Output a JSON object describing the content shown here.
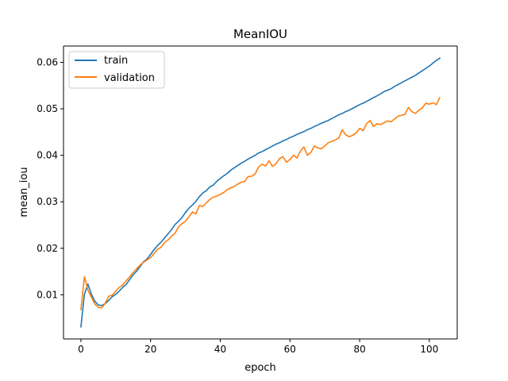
{
  "chart_data": {
    "type": "line",
    "title": "MeanIOU",
    "xlabel": "epoch",
    "ylabel": "mean_iou",
    "xlim": [
      -5,
      108
    ],
    "ylim": [
      0.0005,
      0.0635
    ],
    "xticks": [
      0,
      20,
      40,
      60,
      80,
      100
    ],
    "xtick_labels": [
      "0",
      "20",
      "40",
      "60",
      "80",
      "100"
    ],
    "yticks": [
      0.01,
      0.02,
      0.03,
      0.04,
      0.05,
      0.06
    ],
    "ytick_labels": [
      "0.01",
      "0.02",
      "0.03",
      "0.04",
      "0.05",
      "0.06"
    ],
    "grid": false,
    "legend_position": "top-left",
    "series": [
      {
        "name": "train",
        "color": "#1f77b4",
        "x": [
          0,
          1,
          2,
          3,
          4,
          5,
          6,
          7,
          8,
          9,
          10,
          11,
          12,
          13,
          14,
          15,
          16,
          17,
          18,
          19,
          20,
          21,
          22,
          23,
          24,
          25,
          26,
          27,
          28,
          29,
          30,
          31,
          32,
          33,
          34,
          35,
          36,
          37,
          38,
          39,
          40,
          41,
          42,
          43,
          44,
          45,
          46,
          47,
          48,
          49,
          50,
          51,
          52,
          53,
          54,
          55,
          56,
          57,
          58,
          59,
          60,
          61,
          62,
          63,
          64,
          65,
          66,
          67,
          68,
          69,
          70,
          71,
          72,
          73,
          74,
          75,
          76,
          77,
          78,
          79,
          80,
          81,
          82,
          83,
          84,
          85,
          86,
          87,
          88,
          89,
          90,
          91,
          92,
          93,
          94,
          95,
          96,
          97,
          98,
          99,
          100,
          101,
          102,
          103
        ],
        "values": [
          0.0031,
          0.0101,
          0.0123,
          0.0101,
          0.0086,
          0.0078,
          0.0077,
          0.0081,
          0.0088,
          0.0096,
          0.0101,
          0.0108,
          0.0116,
          0.0122,
          0.0133,
          0.0143,
          0.0151,
          0.0161,
          0.0171,
          0.0177,
          0.0187,
          0.0197,
          0.0206,
          0.0213,
          0.0222,
          0.0231,
          0.024,
          0.0251,
          0.0258,
          0.0266,
          0.0277,
          0.0286,
          0.0293,
          0.0301,
          0.0311,
          0.0319,
          0.0324,
          0.0332,
          0.0336,
          0.0344,
          0.035,
          0.0356,
          0.0361,
          0.0368,
          0.0373,
          0.0378,
          0.0383,
          0.0387,
          0.0392,
          0.0396,
          0.04,
          0.0405,
          0.0408,
          0.0412,
          0.0416,
          0.042,
          0.0424,
          0.0427,
          0.0431,
          0.0434,
          0.0438,
          0.0441,
          0.0445,
          0.0448,
          0.0451,
          0.0455,
          0.0458,
          0.0462,
          0.0465,
          0.0469,
          0.0472,
          0.0475,
          0.0479,
          0.0483,
          0.0487,
          0.049,
          0.0494,
          0.0497,
          0.0501,
          0.0505,
          0.0509,
          0.0512,
          0.0516,
          0.052,
          0.0524,
          0.0528,
          0.0532,
          0.0537,
          0.054,
          0.0543,
          0.0548,
          0.0552,
          0.0556,
          0.056,
          0.0564,
          0.0568,
          0.0572,
          0.0577,
          0.0582,
          0.0587,
          0.0592,
          0.0598,
          0.0604,
          0.0609
        ]
      },
      {
        "name": "validation",
        "color": "#ff7f0e",
        "x": [
          0,
          1,
          2,
          3,
          4,
          5,
          6,
          7,
          8,
          9,
          10,
          11,
          12,
          13,
          14,
          15,
          16,
          17,
          18,
          19,
          20,
          21,
          22,
          23,
          24,
          25,
          26,
          27,
          28,
          29,
          30,
          31,
          32,
          33,
          34,
          35,
          36,
          37,
          38,
          39,
          40,
          41,
          42,
          43,
          44,
          45,
          46,
          47,
          48,
          49,
          50,
          51,
          52,
          53,
          54,
          55,
          56,
          57,
          58,
          59,
          60,
          61,
          62,
          63,
          64,
          65,
          66,
          67,
          68,
          69,
          70,
          71,
          72,
          73,
          74,
          75,
          76,
          77,
          78,
          79,
          80,
          81,
          82,
          83,
          84,
          85,
          86,
          87,
          88,
          89,
          90,
          91,
          92,
          93,
          94,
          95,
          96,
          97,
          98,
          99,
          100,
          101,
          102,
          103
        ],
        "values": [
          0.0068,
          0.0139,
          0.011,
          0.0095,
          0.008,
          0.0073,
          0.0072,
          0.0082,
          0.0097,
          0.0099,
          0.0108,
          0.0116,
          0.0121,
          0.013,
          0.0139,
          0.0148,
          0.0156,
          0.0164,
          0.017,
          0.0175,
          0.018,
          0.0189,
          0.0198,
          0.0202,
          0.0212,
          0.0218,
          0.0226,
          0.0232,
          0.0246,
          0.0253,
          0.0258,
          0.0268,
          0.0278,
          0.0274,
          0.0292,
          0.029,
          0.0298,
          0.0305,
          0.031,
          0.0312,
          0.0316,
          0.032,
          0.0326,
          0.033,
          0.0333,
          0.0338,
          0.0342,
          0.0344,
          0.0354,
          0.0355,
          0.036,
          0.0375,
          0.0381,
          0.0377,
          0.0388,
          0.0376,
          0.0382,
          0.0393,
          0.0397,
          0.0385,
          0.0391,
          0.04,
          0.0394,
          0.0409,
          0.0418,
          0.04,
          0.0406,
          0.042,
          0.0416,
          0.0414,
          0.042,
          0.0427,
          0.043,
          0.0433,
          0.0437,
          0.0455,
          0.0444,
          0.044,
          0.0443,
          0.0448,
          0.0458,
          0.0453,
          0.0468,
          0.0475,
          0.0462,
          0.0468,
          0.0466,
          0.047,
          0.0474,
          0.0472,
          0.0478,
          0.0484,
          0.0486,
          0.0488,
          0.0503,
          0.0494,
          0.049,
          0.0497,
          0.0502,
          0.0512,
          0.051,
          0.0513,
          0.0509,
          0.0524
        ]
      }
    ]
  }
}
